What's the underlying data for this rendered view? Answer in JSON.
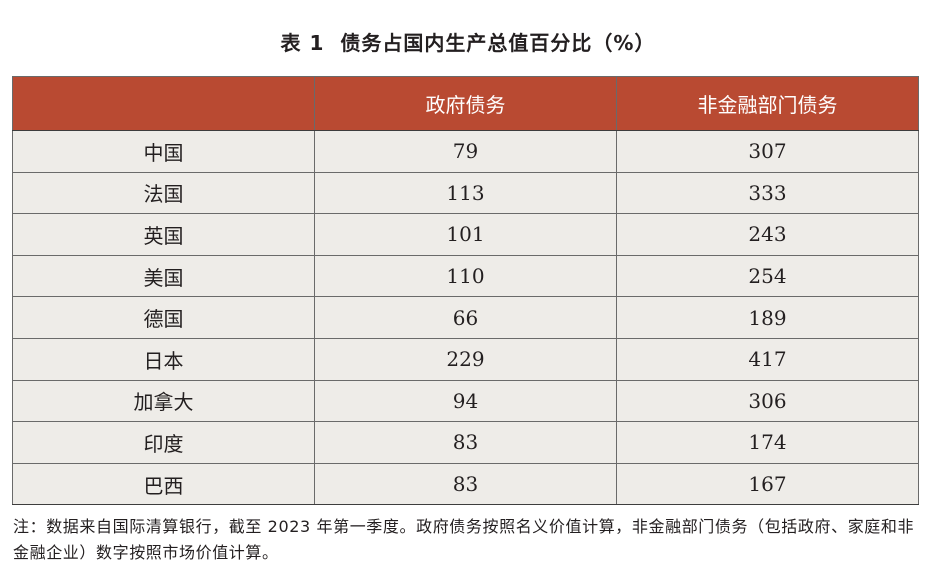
{
  "title": {
    "number": "表 1",
    "text": "债务占国内生产总值百分比（%）"
  },
  "table": {
    "headers": [
      "",
      "政府债务",
      "非金融部门债务"
    ],
    "rows": [
      [
        "中国",
        "79",
        "307"
      ],
      [
        "法国",
        "113",
        "333"
      ],
      [
        "英国",
        "101",
        "243"
      ],
      [
        "美国",
        "110",
        "254"
      ],
      [
        "德国",
        "66",
        "189"
      ],
      [
        "日本",
        "229",
        "417"
      ],
      [
        "加拿大",
        "94",
        "306"
      ],
      [
        "印度",
        "83",
        "174"
      ],
      [
        "巴西",
        "83",
        "167"
      ]
    ]
  },
  "note": "注：数据来自国际清算银行，截至 2023 年第一季度。政府债务按照名义价值计算，非金融部门债务（包括政府、家庭和非金融企业）数字按照市场价值计算。",
  "colors": {
    "header_bg": "#b94a32",
    "header_text": "#ffffff",
    "cell_bg": "#eeece8",
    "border": "#6a6a6a"
  }
}
